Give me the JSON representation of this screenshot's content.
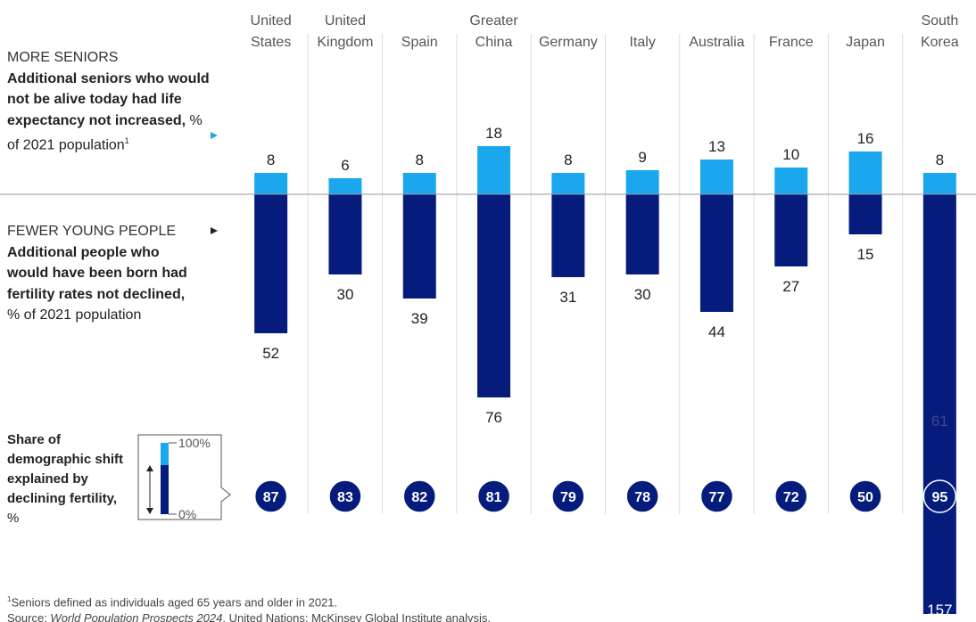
{
  "chart_data": {
    "type": "bar",
    "categories": [
      "United States",
      "United Kingdom",
      "Spain",
      "Greater China",
      "Germany",
      "Italy",
      "Australia",
      "France",
      "Japan",
      "South Korea"
    ],
    "series": [
      {
        "name": "MORE SENIORS",
        "color": "#1ba7ee",
        "direction": "up",
        "values": [
          8,
          6,
          8,
          18,
          8,
          9,
          13,
          10,
          16,
          8
        ]
      },
      {
        "name": "FEWER YOUNG PEOPLE",
        "color": "#061c7d",
        "direction": "down",
        "values": [
          52,
          30,
          39,
          76,
          31,
          30,
          44,
          27,
          15,
          157
        ]
      }
    ],
    "share": {
      "color": "#061c7d",
      "values": [
        87,
        83,
        82,
        81,
        79,
        78,
        77,
        72,
        50,
        95
      ]
    },
    "ylim": [
      -160,
      20
    ],
    "annotation": {
      "category": "South Korea",
      "text": "61"
    }
  },
  "left_text": {
    "seniors": {
      "bold": "Additional seniors who would not be alive today had life expectancy not increased,",
      "normal": " % of 2021 population",
      "sup": "1"
    },
    "young": {
      "bold": "Additional people who would have been born had fertility rates not declined,",
      "normal": " % of 2021 population"
    },
    "share": {
      "bold": "Share of demographic shift explained by declining fertility,",
      "normal": " %"
    },
    "key": {
      "top": "100%",
      "bottom": "0%"
    }
  },
  "footnotes": {
    "note_mark": "1",
    "note": "Seniors defined as individuals aged 65 years and older in 2021.",
    "source_prefix": "Source: ",
    "source_italic": "World Population Prospects 2024",
    "source_rest": ", United Nations; McKinsey Global Institute analysis."
  }
}
